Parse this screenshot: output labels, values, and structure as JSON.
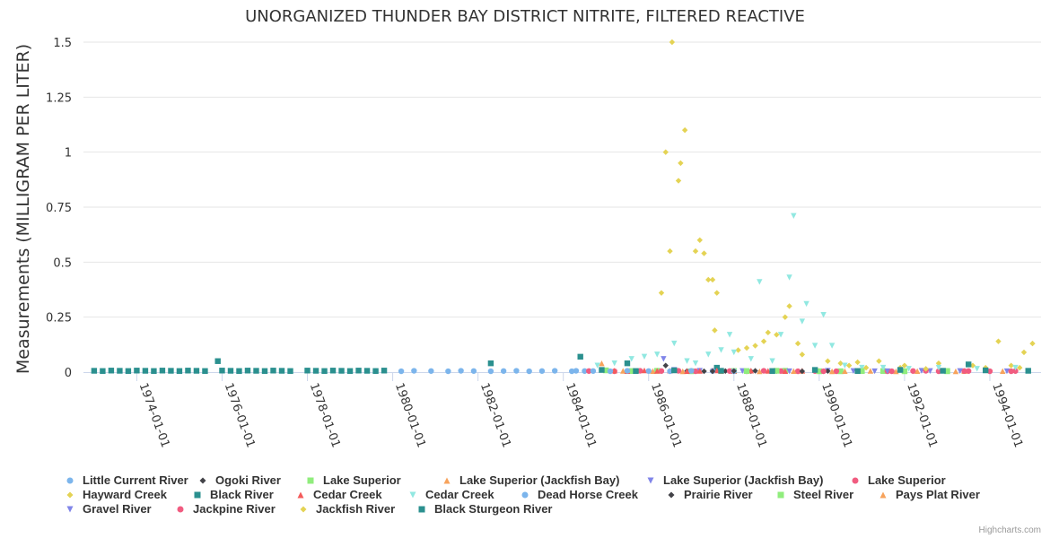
{
  "chart_data": {
    "type": "scatter",
    "title": "UNORGANIZED THUNDER BAY DISTRICT NITRITE, FILTERED REACTIVE",
    "ylabel": "Measurements (MILLIGRAM PER LITER)",
    "xlabel": "",
    "credits": "Highcharts.com",
    "x_range": [
      1972.75,
      1995.2
    ],
    "ylim": [
      0,
      1.5
    ],
    "y_ticks": [
      {
        "value": 0,
        "label": "0"
      },
      {
        "value": 0.25,
        "label": "0.25"
      },
      {
        "value": 0.5,
        "label": "0.5"
      },
      {
        "value": 0.75,
        "label": "0.75"
      },
      {
        "value": 1,
        "label": "1"
      },
      {
        "value": 1.25,
        "label": "1.25"
      },
      {
        "value": 1.5,
        "label": "1.5"
      }
    ],
    "x_ticks": [
      {
        "value": 1974.0,
        "label": "1974-01-01"
      },
      {
        "value": 1976.0,
        "label": "1976-01-01"
      },
      {
        "value": 1978.0,
        "label": "1978-01-01"
      },
      {
        "value": 1980.0,
        "label": "1980-01-01"
      },
      {
        "value": 1982.0,
        "label": "1982-01-01"
      },
      {
        "value": 1984.0,
        "label": "1984-01-01"
      },
      {
        "value": 1986.0,
        "label": "1986-01-01"
      },
      {
        "value": 1988.0,
        "label": "1988-01-01"
      },
      {
        "value": 1990.0,
        "label": "1990-01-01"
      },
      {
        "value": 1992.0,
        "label": "1992-01-01"
      },
      {
        "value": 1994.0,
        "label": "1994-01-01"
      }
    ],
    "grid": true,
    "legend_position": "bottom",
    "series": [
      {
        "name": "Little Current River",
        "color": "#7cb5ec",
        "symbol": "circle",
        "points": [
          [
            1979.6,
            0.005
          ],
          [
            1980.2,
            0.004
          ],
          [
            1980.5,
            0.006
          ],
          [
            1980.9,
            0.005
          ],
          [
            1981.3,
            0.004
          ],
          [
            1981.6,
            0.006
          ],
          [
            1981.9,
            0.005
          ],
          [
            1982.3,
            0.004
          ],
          [
            1982.6,
            0.005
          ],
          [
            1982.9,
            0.006
          ],
          [
            1983.2,
            0.004
          ],
          [
            1983.5,
            0.005
          ],
          [
            1983.8,
            0.006
          ],
          [
            1984.2,
            0.004
          ],
          [
            1984.5,
            0.005
          ]
        ]
      },
      {
        "name": "Ogoki River",
        "color": "#434348",
        "symbol": "diamond",
        "points": [
          [
            1986.4,
            0.03
          ],
          [
            1986.9,
            0.005
          ],
          [
            1987.3,
            0.004
          ],
          [
            1987.8,
            0.005
          ],
          [
            1988.4,
            0.004
          ],
          [
            1989.0,
            0.006
          ],
          [
            1989.5,
            0.004
          ]
        ]
      },
      {
        "name": "Lake Superior",
        "color": "#90ed7d",
        "symbol": "square",
        "points": [
          [
            1985.0,
            0.008
          ],
          [
            1985.6,
            0.005
          ],
          [
            1986.2,
            0.006
          ],
          [
            1987.0,
            0.004
          ],
          [
            1988.0,
            0.005
          ],
          [
            1989.2,
            0.006
          ],
          [
            1990.5,
            0.004
          ],
          [
            1991.5,
            0.005
          ],
          [
            1993.0,
            0.004
          ]
        ]
      },
      {
        "name": "Lake Superior (Jackfish Bay)",
        "color": "#f7a35c",
        "symbol": "triangle",
        "points": [
          [
            1984.9,
            0.04
          ],
          [
            1985.4,
            0.006
          ],
          [
            1986.1,
            0.005
          ],
          [
            1986.8,
            0.004
          ],
          [
            1987.7,
            0.005
          ],
          [
            1988.6,
            0.004
          ],
          [
            1989.6,
            0.006
          ],
          [
            1990.6,
            0.005
          ],
          [
            1991.8,
            0.004
          ],
          [
            1993.4,
            0.005
          ]
        ]
      },
      {
        "name": "Lake Superior (Jackfish Bay)",
        "color": "#8085e9",
        "symbol": "triangle-down",
        "points": [
          [
            1986.35,
            0.06
          ],
          [
            1986.6,
            0.01
          ],
          [
            1987.2,
            0.006
          ],
          [
            1988.2,
            0.005
          ],
          [
            1989.3,
            0.004
          ],
          [
            1990.2,
            0.006
          ],
          [
            1991.3,
            0.004
          ],
          [
            1992.6,
            0.005
          ]
        ]
      },
      {
        "name": "Lake Superior",
        "color": "#f15c80",
        "symbol": "circle",
        "points": [
          [
            1984.6,
            0.005
          ],
          [
            1985.2,
            0.004
          ],
          [
            1985.8,
            0.006
          ],
          [
            1986.3,
            0.005
          ],
          [
            1986.7,
            0.006
          ],
          [
            1987.1,
            0.004
          ],
          [
            1987.5,
            0.006
          ],
          [
            1987.9,
            0.005
          ],
          [
            1988.3,
            0.004
          ],
          [
            1988.7,
            0.006
          ],
          [
            1989.1,
            0.005
          ],
          [
            1989.5,
            0.004
          ],
          [
            1989.9,
            0.005
          ],
          [
            1990.4,
            0.004
          ],
          [
            1991.0,
            0.005
          ],
          [
            1991.6,
            0.004
          ],
          [
            1992.2,
            0.005
          ],
          [
            1992.8,
            0.004
          ],
          [
            1993.4,
            0.005
          ],
          [
            1994.0,
            0.004
          ],
          [
            1994.6,
            0.005
          ]
        ]
      },
      {
        "name": "Hayward Creek",
        "color": "#e4d354",
        "symbol": "diamond",
        "points": [
          [
            1986.4,
            1.0
          ],
          [
            1986.5,
            0.55
          ],
          [
            1986.55,
            1.5
          ],
          [
            1986.7,
            0.87
          ],
          [
            1986.75,
            0.95
          ],
          [
            1986.85,
            1.1
          ],
          [
            1986.3,
            0.36
          ],
          [
            1987.1,
            0.55
          ],
          [
            1987.2,
            0.6
          ],
          [
            1987.3,
            0.54
          ],
          [
            1987.4,
            0.42
          ],
          [
            1987.5,
            0.42
          ],
          [
            1987.6,
            0.36
          ],
          [
            1987.55,
            0.19
          ],
          [
            1988.1,
            0.1
          ],
          [
            1988.3,
            0.11
          ],
          [
            1988.5,
            0.12
          ],
          [
            1988.7,
            0.14
          ],
          [
            1988.8,
            0.18
          ],
          [
            1989.0,
            0.17
          ],
          [
            1989.2,
            0.25
          ],
          [
            1989.3,
            0.3
          ],
          [
            1989.5,
            0.13
          ],
          [
            1989.6,
            0.08
          ],
          [
            1990.2,
            0.05
          ],
          [
            1990.5,
            0.04
          ],
          [
            1990.9,
            0.045
          ],
          [
            1991.4,
            0.05
          ],
          [
            1992.0,
            0.03
          ],
          [
            1992.8,
            0.04
          ],
          [
            1993.6,
            0.03
          ],
          [
            1994.2,
            0.14
          ],
          [
            1994.5,
            0.03
          ],
          [
            1994.8,
            0.09
          ],
          [
            1995.0,
            0.13
          ]
        ]
      },
      {
        "name": "Black River",
        "color": "#2b908f",
        "symbol": "square",
        "points": [
          [
            1973.0,
            0.006
          ],
          [
            1973.2,
            0.005
          ],
          [
            1973.4,
            0.007
          ],
          [
            1973.6,
            0.006
          ],
          [
            1973.8,
            0.005
          ],
          [
            1974.0,
            0.007
          ],
          [
            1974.2,
            0.006
          ],
          [
            1974.4,
            0.005
          ],
          [
            1974.6,
            0.007
          ],
          [
            1974.8,
            0.006
          ],
          [
            1975.0,
            0.005
          ],
          [
            1975.2,
            0.007
          ],
          [
            1975.4,
            0.006
          ],
          [
            1975.6,
            0.005
          ],
          [
            1975.9,
            0.05
          ],
          [
            1976.0,
            0.007
          ],
          [
            1976.2,
            0.006
          ],
          [
            1976.4,
            0.005
          ],
          [
            1976.6,
            0.007
          ],
          [
            1976.8,
            0.006
          ],
          [
            1977.0,
            0.005
          ],
          [
            1977.2,
            0.007
          ],
          [
            1977.4,
            0.006
          ],
          [
            1977.6,
            0.005
          ],
          [
            1978.0,
            0.007
          ],
          [
            1978.2,
            0.006
          ],
          [
            1978.4,
            0.005
          ],
          [
            1978.6,
            0.007
          ],
          [
            1978.8,
            0.006
          ],
          [
            1979.0,
            0.005
          ],
          [
            1979.2,
            0.007
          ],
          [
            1979.4,
            0.006
          ],
          [
            1979.6,
            0.005
          ],
          [
            1979.8,
            0.007
          ],
          [
            1982.3,
            0.04
          ],
          [
            1984.4,
            0.07
          ],
          [
            1985.5,
            0.04
          ],
          [
            1987.6,
            0.02
          ],
          [
            1993.5,
            0.035
          ]
        ]
      },
      {
        "name": "Cedar Creek",
        "color": "#f45b5b",
        "symbol": "triangle",
        "points": [
          [
            1985.2,
            0.007
          ],
          [
            1985.5,
            0.005
          ],
          [
            1985.9,
            0.008
          ],
          [
            1986.2,
            0.006
          ],
          [
            1986.5,
            0.007
          ],
          [
            1986.9,
            0.005
          ],
          [
            1987.2,
            0.006
          ],
          [
            1987.6,
            0.008
          ],
          [
            1988.0,
            0.005
          ],
          [
            1988.4,
            0.007
          ],
          [
            1988.8,
            0.006
          ],
          [
            1989.2,
            0.005
          ],
          [
            1989.6,
            0.007
          ],
          [
            1990.0,
            0.006
          ]
        ]
      },
      {
        "name": "Cedar Creek",
        "color": "#91e8e1",
        "symbol": "triangle-down",
        "points": [
          [
            1984.8,
            0.03
          ],
          [
            1985.2,
            0.04
          ],
          [
            1985.6,
            0.06
          ],
          [
            1985.9,
            0.07
          ],
          [
            1986.2,
            0.08
          ],
          [
            1986.6,
            0.13
          ],
          [
            1986.9,
            0.05
          ],
          [
            1987.1,
            0.04
          ],
          [
            1987.4,
            0.08
          ],
          [
            1987.7,
            0.1
          ],
          [
            1987.9,
            0.17
          ],
          [
            1988.0,
            0.09
          ],
          [
            1988.4,
            0.06
          ],
          [
            1988.6,
            0.41
          ],
          [
            1988.9,
            0.05
          ],
          [
            1989.1,
            0.17
          ],
          [
            1989.3,
            0.43
          ],
          [
            1989.4,
            0.71
          ],
          [
            1989.6,
            0.23
          ],
          [
            1989.7,
            0.31
          ],
          [
            1989.9,
            0.12
          ],
          [
            1990.1,
            0.26
          ],
          [
            1990.3,
            0.12
          ],
          [
            1990.6,
            0.03
          ],
          [
            1991.0,
            0.02
          ],
          [
            1991.5,
            0.02
          ],
          [
            1992.1,
            0.015
          ],
          [
            1992.8,
            0.02
          ],
          [
            1993.7,
            0.015
          ],
          [
            1994.6,
            0.02
          ]
        ]
      },
      {
        "name": "Dead Horse Creek",
        "color": "#7cb5ec",
        "symbol": "circle",
        "points": [
          [
            1984.3,
            0.006
          ],
          [
            1984.7,
            0.005
          ],
          [
            1985.1,
            0.004
          ],
          [
            1985.5,
            0.006
          ],
          [
            1986.0,
            0.005
          ],
          [
            1986.5,
            0.004
          ],
          [
            1987.0,
            0.006
          ],
          [
            1987.5,
            0.005
          ],
          [
            1988.0,
            0.004
          ]
        ]
      },
      {
        "name": "Prairie River",
        "color": "#434348",
        "symbol": "diamond",
        "points": [
          [
            1987.5,
            0.004
          ],
          [
            1988.0,
            0.005
          ],
          [
            1988.5,
            0.006
          ],
          [
            1989.0,
            0.005
          ],
          [
            1989.6,
            0.004
          ],
          [
            1990.2,
            0.005
          ]
        ]
      },
      {
        "name": "Steel River",
        "color": "#90ed7d",
        "symbol": "square",
        "points": [
          [
            1988.3,
            0.005
          ],
          [
            1989.0,
            0.006
          ],
          [
            1990.0,
            0.004
          ],
          [
            1991.0,
            0.005
          ],
          [
            1992.0,
            0.004
          ],
          [
            1993.0,
            0.005
          ]
        ]
      },
      {
        "name": "Pays Plat River",
        "color": "#f7a35c",
        "symbol": "triangle",
        "points": [
          [
            1989.4,
            0.005
          ],
          [
            1990.3,
            0.004
          ],
          [
            1991.2,
            0.006
          ],
          [
            1992.3,
            0.005
          ],
          [
            1993.2,
            0.004
          ],
          [
            1994.3,
            0.005
          ]
        ]
      },
      {
        "name": "Gravel River",
        "color": "#8085e9",
        "symbol": "triangle-down",
        "points": [
          [
            1990.8,
            0.005
          ],
          [
            1991.6,
            0.004
          ],
          [
            1992.4,
            0.006
          ],
          [
            1993.3,
            0.005
          ],
          [
            1994.4,
            0.004
          ]
        ]
      },
      {
        "name": "Jackpine River",
        "color": "#f15c80",
        "symbol": "circle",
        "points": [
          [
            1990.1,
            0.004
          ],
          [
            1990.9,
            0.005
          ],
          [
            1991.7,
            0.004
          ],
          [
            1992.5,
            0.006
          ],
          [
            1993.5,
            0.005
          ],
          [
            1994.5,
            0.004
          ]
        ]
      },
      {
        "name": "Jackfish River",
        "color": "#e4d354",
        "symbol": "diamond",
        "points": [
          [
            1990.7,
            0.03
          ],
          [
            1991.1,
            0.02
          ],
          [
            1991.9,
            0.02
          ],
          [
            1992.5,
            0.015
          ],
          [
            1993.9,
            0.02
          ],
          [
            1994.7,
            0.02
          ]
        ]
      },
      {
        "name": "Black Sturgeon River",
        "color": "#2b908f",
        "symbol": "square",
        "points": [
          [
            1984.9,
            0.01
          ],
          [
            1985.7,
            0.005
          ],
          [
            1986.6,
            0.008
          ],
          [
            1987.7,
            0.006
          ],
          [
            1988.9,
            0.005
          ],
          [
            1989.9,
            0.01
          ],
          [
            1990.9,
            0.005
          ],
          [
            1991.9,
            0.01
          ],
          [
            1992.9,
            0.006
          ],
          [
            1993.9,
            0.008
          ],
          [
            1994.9,
            0.006
          ]
        ]
      }
    ]
  }
}
